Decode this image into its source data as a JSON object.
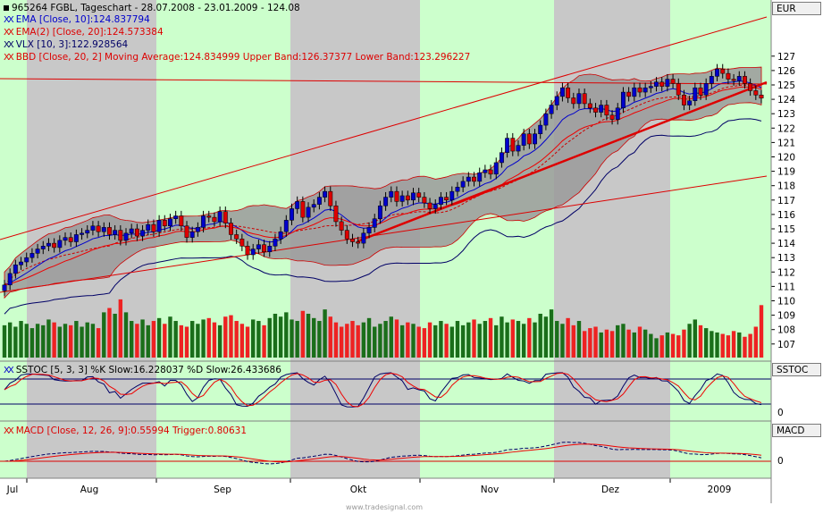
{
  "header": {
    "title": "965264  FGBL, Tageschart - 28.07.2008 - 23.01.2009 - 124.08",
    "lines": [
      {
        "marker": "XX",
        "text": "EMA [Close, 10]:124.837794",
        "color": "#0000cc"
      },
      {
        "marker": "XX",
        "text": "EMA(2) [Close, 20]:124.573384",
        "color": "#dd0000"
      },
      {
        "marker": "XX",
        "text": "VLX [10, 3]:122.928564",
        "color": "#000066"
      },
      {
        "marker": "XX",
        "text": "BBD [Close, 20, 2] Moving Average:124.834999 Upper Band:126.37377 Lower Band:123.296227",
        "color": "#dd0000"
      }
    ]
  },
  "panels": {
    "price_label": "EUR",
    "stoch_label": "SSTOC",
    "stoch_text": "SSTOC [5, 3, 3] %K Slow:16.228037 %D Slow:26.433686",
    "stoch_zero": "0",
    "macd_label": "MACD",
    "macd_text": "MACD [Close, 12, 26, 9]:0.55994 Trigger:0.80631",
    "macd_zero": "0"
  },
  "footer": "www.tradesignal.com",
  "colors": {
    "up": "#0000cc",
    "down": "#dd0000",
    "vol_up": "#1a6e1a",
    "vol_down": "#ee2222",
    "green_band": "#ccffcc",
    "grey_band": "#c8c8c8",
    "bollinger": "#9a9a9a"
  },
  "chart_data": {
    "type": "candlestick",
    "title": "965264  FGBL, Tageschart - 28.07.2008 - 23.01.2009 - 124.08",
    "xlabels": [
      "Jul",
      "Aug",
      "Sep",
      "Okt",
      "Nov",
      "Dez",
      "2009"
    ],
    "y_ticks": [
      107,
      108,
      109,
      110,
      111,
      112,
      113,
      114,
      115,
      116,
      117,
      118,
      119,
      120,
      121,
      122,
      123,
      124,
      125,
      126,
      127
    ],
    "ylim": [
      106,
      128
    ],
    "close": [
      111.1,
      111.9,
      112.5,
      112.7,
      113.0,
      113.3,
      113.6,
      113.8,
      114.0,
      113.7,
      114.2,
      114.4,
      114.1,
      114.6,
      114.7,
      114.9,
      115.2,
      114.8,
      115.1,
      114.6,
      114.9,
      114.2,
      114.7,
      115.0,
      114.5,
      114.9,
      115.3,
      114.8,
      115.6,
      115.2,
      115.7,
      115.9,
      115.2,
      114.4,
      114.8,
      115.1,
      115.9,
      115.8,
      115.5,
      116.2,
      115.4,
      114.6,
      114.3,
      113.8,
      113.2,
      113.6,
      113.9,
      113.4,
      113.8,
      114.3,
      114.8,
      115.6,
      116.4,
      116.9,
      115.8,
      116.5,
      116.7,
      117.2,
      117.6,
      116.6,
      115.5,
      114.9,
      114.3,
      114.1,
      114.0,
      114.7,
      115.1,
      115.7,
      116.6,
      117.2,
      117.6,
      116.9,
      117.3,
      117.0,
      117.5,
      117.2,
      116.8,
      116.4,
      116.7,
      117.2,
      117.0,
      117.6,
      117.9,
      118.3,
      118.6,
      118.3,
      118.9,
      119.1,
      118.8,
      119.6,
      120.3,
      121.3,
      120.4,
      120.8,
      121.6,
      120.9,
      121.6,
      122.2,
      123.0,
      123.6,
      124.2,
      124.8,
      124.1,
      123.7,
      124.4,
      123.7,
      123.4,
      123.1,
      123.6,
      122.9,
      122.6,
      123.4,
      124.5,
      124.2,
      124.8,
      124.5,
      124.8,
      124.9,
      125.2,
      124.9,
      125.4,
      125.1,
      124.3,
      123.6,
      123.9,
      124.8,
      124.3,
      125.1,
      125.6,
      126.1,
      125.8,
      125.4,
      125.3,
      125.6,
      125.1,
      124.6,
      124.3,
      124.08
    ],
    "volume": [
      108.3,
      108.5,
      108.2,
      108.6,
      108.4,
      108.1,
      108.4,
      108.3,
      108.7,
      108.5,
      108.2,
      108.4,
      108.3,
      108.6,
      108.2,
      108.5,
      108.4,
      108.1,
      109.2,
      109.5,
      109.1,
      110.1,
      109.2,
      108.6,
      108.4,
      108.7,
      108.3,
      108.6,
      108.8,
      108.4,
      108.9,
      108.6,
      108.3,
      108.2,
      108.6,
      108.4,
      108.7,
      108.8,
      108.5,
      108.3,
      108.9,
      109.0,
      108.6,
      108.4,
      108.2,
      108.7,
      108.6,
      108.3,
      108.8,
      109.1,
      108.9,
      109.2,
      108.7,
      108.6,
      109.3,
      109.1,
      108.8,
      108.6,
      109.4,
      108.9,
      108.5,
      108.2,
      108.4,
      108.6,
      108.3,
      108.5,
      108.8,
      108.2,
      108.4,
      108.6,
      108.9,
      108.7,
      108.3,
      108.5,
      108.4,
      108.2,
      108.1,
      108.5,
      108.3,
      108.6,
      108.4,
      108.2,
      108.6,
      108.3,
      108.5,
      108.7,
      108.4,
      108.6,
      108.8,
      108.3,
      108.9,
      108.5,
      108.7,
      108.6,
      108.4,
      108.8,
      108.5,
      109.1,
      108.9,
      109.4,
      108.6,
      108.4,
      108.8,
      108.3,
      108.6,
      107.9,
      108.1,
      108.2,
      107.8,
      108.0,
      107.9,
      108.3,
      108.4,
      108.0,
      107.8,
      108.2,
      108.0,
      107.7,
      107.4,
      107.6,
      107.8,
      107.7,
      107.6,
      108.0,
      108.4,
      108.7,
      108.3,
      108.1,
      107.9,
      107.8,
      107.7,
      107.6,
      107.9,
      107.8,
      107.5,
      107.7,
      108.2,
      109.7
    ]
  }
}
